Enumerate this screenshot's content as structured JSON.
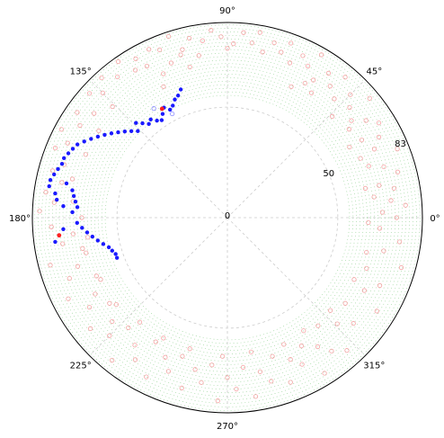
{
  "chart_data": {
    "type": "scatter",
    "projection": "polar",
    "title": "",
    "theta_unit": "degrees",
    "angle_tick_labels": [
      "0°",
      "45°",
      "90°",
      "135°",
      "180°",
      "225°",
      "270°",
      "315°"
    ],
    "angle_tick_values": [
      0,
      45,
      90,
      135,
      180,
      225,
      270,
      315
    ],
    "radial_tick_labels": [
      "0",
      "50",
      "83"
    ],
    "radial_tick_values": [
      0,
      50,
      83
    ],
    "rlim": [
      0,
      83
    ],
    "grid": true,
    "legend": "none",
    "inner_reference_circle_r": 47,
    "colors": {
      "background_ring": "#f4a3a3",
      "blue_series": "#1a1aff",
      "red_highlight": "#ff2020",
      "grid": "#cccccc",
      "dotted_ring": "#8fd08f"
    },
    "series": [
      {
        "style": "hollow-red",
        "points": [
          [
            95,
            80
          ],
          [
            98,
            76
          ],
          [
            102,
            78
          ],
          [
            105,
            74
          ],
          [
            108,
            81
          ],
          [
            110,
            70
          ],
          [
            112,
            77
          ],
          [
            115,
            79
          ],
          [
            118,
            73
          ],
          [
            85,
            79
          ],
          [
            82,
            75
          ],
          [
            80,
            80
          ],
          [
            78,
            72
          ],
          [
            75,
            77
          ],
          [
            72,
            74
          ],
          [
            70,
            79
          ],
          [
            68,
            71
          ],
          [
            65,
            76
          ],
          [
            62,
            73
          ],
          [
            60,
            80
          ],
          [
            58,
            69
          ],
          [
            55,
            75
          ],
          [
            52,
            71
          ],
          [
            50,
            78
          ],
          [
            48,
            68
          ],
          [
            45,
            74
          ],
          [
            42,
            70
          ],
          [
            40,
            79
          ],
          [
            38,
            67
          ],
          [
            35,
            72
          ],
          [
            32,
            76
          ],
          [
            30,
            66
          ],
          [
            28,
            73
          ],
          [
            25,
            69
          ],
          [
            22,
            78
          ],
          [
            20,
            64
          ],
          [
            18,
            70
          ],
          [
            15,
            75
          ],
          [
            12,
            66
          ],
          [
            10,
            72
          ],
          [
            8,
            63
          ],
          [
            6,
            70
          ],
          [
            4,
            76
          ],
          [
            2,
            66
          ],
          [
            0,
            72
          ],
          [
            -4,
            65
          ],
          [
            -8,
            74
          ],
          [
            -12,
            68
          ],
          [
            -16,
            77
          ],
          [
            -20,
            63
          ],
          [
            -24,
            71
          ],
          [
            -28,
            66
          ],
          [
            -32,
            75
          ],
          [
            -36,
            62
          ],
          [
            -40,
            70
          ],
          [
            -44,
            65
          ],
          [
            -48,
            76
          ],
          [
            -50,
            60
          ],
          [
            -52,
            72
          ],
          [
            -55,
            67
          ],
          [
            -58,
            78
          ],
          [
            -60,
            63
          ],
          [
            -63,
            70
          ],
          [
            -66,
            66
          ],
          [
            -69,
            75
          ],
          [
            -72,
            62
          ],
          [
            -75,
            72
          ],
          [
            -78,
            67
          ],
          [
            -81,
            77
          ],
          [
            -84,
            64
          ],
          [
            -87,
            73
          ],
          [
            -90,
            68
          ],
          [
            -93,
            78
          ],
          [
            -96,
            63
          ],
          [
            -99,
            71
          ],
          [
            -102,
            66
          ],
          [
            -105,
            75
          ],
          [
            -108,
            62
          ],
          [
            -111,
            70
          ],
          [
            -114,
            65
          ],
          [
            -117,
            76
          ],
          [
            -120,
            61
          ],
          [
            -123,
            72
          ],
          [
            -126,
            67
          ],
          [
            -129,
            78
          ],
          [
            -132,
            63
          ],
          [
            -135,
            71
          ],
          [
            -138,
            66
          ],
          [
            -141,
            75
          ],
          [
            -144,
            62
          ],
          [
            -147,
            70
          ],
          [
            -150,
            65
          ],
          [
            -153,
            76
          ],
          [
            -156,
            61
          ],
          [
            -159,
            72
          ],
          [
            -162,
            67
          ],
          [
            -165,
            78
          ],
          [
            -168,
            63
          ],
          [
            -171,
            71
          ],
          [
            -174,
            66
          ],
          [
            -177,
            75
          ],
          [
            -180,
            62
          ],
          [
            178,
            80
          ],
          [
            175,
            74
          ],
          [
            172,
            78
          ],
          [
            168,
            72
          ],
          [
            165,
            77
          ],
          [
            162,
            73
          ],
          [
            158,
            79
          ],
          [
            155,
            75
          ],
          [
            152,
            80
          ],
          [
            148,
            74
          ],
          [
            145,
            78
          ],
          [
            142,
            72
          ],
          [
            138,
            79
          ],
          [
            135,
            75
          ],
          [
            132,
            80
          ],
          [
            128,
            76
          ],
          [
            125,
            81
          ],
          [
            122,
            74
          ],
          [
            120,
            78
          ],
          [
            90,
            72
          ],
          [
            92,
            77
          ],
          [
            88,
            74
          ],
          [
            100,
            70
          ],
          [
            104,
            66
          ],
          [
            106,
            72
          ],
          [
            114,
            67
          ],
          [
            116,
            62
          ],
          [
            60,
            66
          ],
          [
            64,
            62
          ],
          [
            56,
            64
          ],
          [
            44,
            62
          ],
          [
            36,
            64
          ],
          [
            30,
            60
          ],
          [
            24,
            62
          ],
          [
            12,
            60
          ],
          [
            -2,
            60
          ],
          [
            -14,
            61
          ],
          [
            -26,
            60
          ],
          [
            -42,
            59
          ],
          [
            -56,
            58
          ],
          [
            -66,
            59
          ],
          [
            -80,
            58
          ],
          [
            -92,
            59
          ],
          [
            -106,
            58
          ],
          [
            -118,
            58
          ],
          [
            -130,
            58
          ],
          [
            -142,
            60
          ],
          [
            -154,
            60
          ],
          [
            -166,
            62
          ],
          [
            -172,
            60
          ],
          [
            174,
            66
          ],
          [
            166,
            68
          ],
          [
            156,
            66
          ],
          [
            146,
            66
          ],
          [
            136,
            68
          ]
        ]
      },
      {
        "style": "blue-dot",
        "points": [
          [
            110,
            58
          ],
          [
            112,
            56
          ],
          [
            114,
            55
          ],
          [
            116,
            53
          ],
          [
            118,
            52
          ],
          [
            120,
            54
          ],
          [
            122,
            52
          ],
          [
            124,
            50
          ],
          [
            126,
            51
          ],
          [
            128,
            53
          ],
          [
            130,
            52
          ],
          [
            132,
            54
          ],
          [
            134,
            56
          ],
          [
            136,
            53
          ],
          [
            138,
            55
          ],
          [
            140,
            57
          ],
          [
            142,
            59
          ],
          [
            144,
            61
          ],
          [
            146,
            63
          ],
          [
            148,
            65
          ],
          [
            150,
            67
          ],
          [
            152,
            69
          ],
          [
            154,
            71
          ],
          [
            156,
            72
          ],
          [
            158,
            73
          ],
          [
            160,
            74
          ],
          [
            162,
            74
          ],
          [
            164,
            75
          ],
          [
            166,
            76
          ],
          [
            168,
            77
          ],
          [
            170,
            77
          ],
          [
            172,
            74
          ],
          [
            174,
            73
          ],
          [
            176,
            70
          ],
          [
            178,
            66
          ],
          [
            -178,
            64
          ],
          [
            -176,
            62
          ],
          [
            -174,
            60
          ],
          [
            -172,
            58
          ],
          [
            -170,
            56
          ],
          [
            -168,
            54
          ],
          [
            -166,
            52
          ],
          [
            -164,
            51
          ],
          [
            -162,
            50
          ],
          [
            -160,
            50
          ],
          [
            176,
            64
          ],
          [
            174,
            65
          ],
          [
            172,
            66
          ],
          [
            170,
            67
          ],
          [
            168,
            70
          ],
          [
            -176,
            70
          ],
          [
            -174,
            72
          ],
          [
            -172,
            74
          ]
        ]
      },
      {
        "style": "red-dot",
        "points": [
          [
            121,
            54
          ],
          [
            -174,
            72
          ]
        ]
      },
      {
        "style": "hollow-blue",
        "points": [
          [
            118,
            50
          ],
          [
            124,
            56
          ]
        ]
      }
    ]
  }
}
